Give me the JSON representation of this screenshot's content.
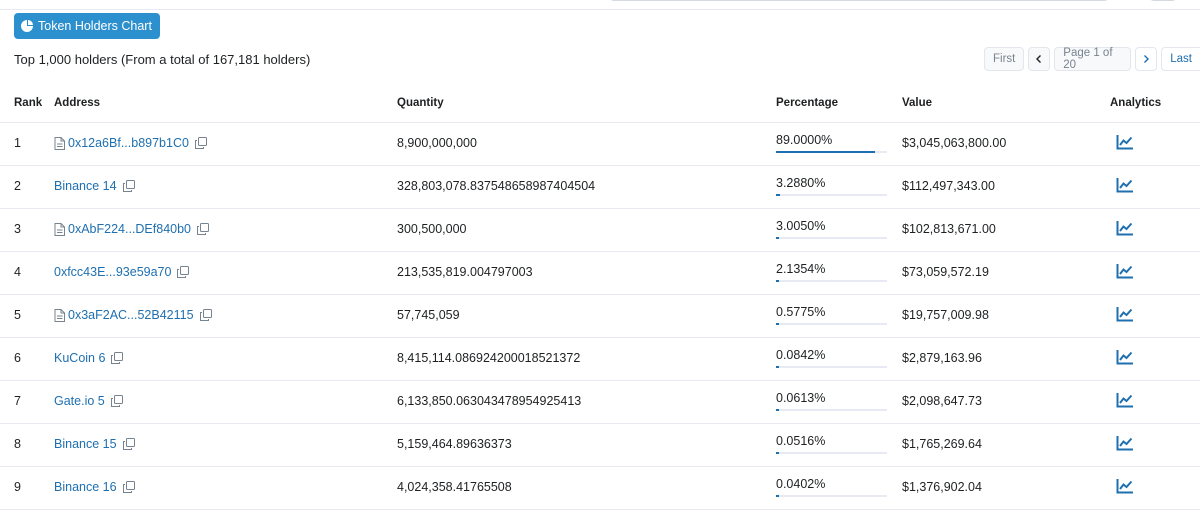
{
  "toolbar": {
    "chart_button_label": "Token Holders Chart",
    "chart_icon": "pie-chart-icon"
  },
  "summary": "Top 1,000 holders (From a total of 167,181 holders)",
  "pagination": {
    "first": "First",
    "prev": "<",
    "page": "Page 1 of 20",
    "next": ">",
    "last": "Last"
  },
  "table": {
    "headers": {
      "rank": "Rank",
      "address": "Address",
      "quantity": "Quantity",
      "percentage": "Percentage",
      "value": "Value",
      "analytics": "Analytics"
    },
    "rows": [
      {
        "rank": "1",
        "address": "0x12a6Bf...b897b1C0",
        "contract": true,
        "quantity": "8,900,000,000",
        "percentage": "89.0000%",
        "pct": 89.0,
        "value": "$3,045,063,800.00"
      },
      {
        "rank": "2",
        "address": "Binance 14",
        "contract": false,
        "quantity": "328,803,078.837548658987404504",
        "percentage": "3.2880%",
        "pct": 3.288,
        "value": "$112,497,343.00"
      },
      {
        "rank": "3",
        "address": "0xAbF224...DEf840b0",
        "contract": true,
        "quantity": "300,500,000",
        "percentage": "3.0050%",
        "pct": 3.005,
        "value": "$102,813,671.00"
      },
      {
        "rank": "4",
        "address": "0xfcc43E...93e59a70",
        "contract": false,
        "quantity": "213,535,819.004797003",
        "percentage": "2.1354%",
        "pct": 2.1354,
        "value": "$73,059,572.19"
      },
      {
        "rank": "5",
        "address": "0x3aF2AC...52B42115",
        "contract": true,
        "quantity": "57,745,059",
        "percentage": "0.5775%",
        "pct": 0.5775,
        "value": "$19,757,009.98"
      },
      {
        "rank": "6",
        "address": "KuCoin 6",
        "contract": false,
        "quantity": "8,415,114.086924200018521372",
        "percentage": "0.0842%",
        "pct": 0.0842,
        "value": "$2,879,163.96"
      },
      {
        "rank": "7",
        "address": "Gate.io 5",
        "contract": false,
        "quantity": "6,133,850.063043478954925413",
        "percentage": "0.0613%",
        "pct": 0.0613,
        "value": "$2,098,647.73"
      },
      {
        "rank": "8",
        "address": "Binance 15",
        "contract": false,
        "quantity": "5,159,464.89636373",
        "percentage": "0.0516%",
        "pct": 0.0516,
        "value": "$1,765,269.64"
      },
      {
        "rank": "9",
        "address": "Binance 16",
        "contract": false,
        "quantity": "4,024,358.41765508",
        "percentage": "0.0402%",
        "pct": 0.0402,
        "value": "$1,376,902.04"
      }
    ]
  },
  "colors": {
    "accent": "#1e6fb0",
    "button_bg": "#2c8fce",
    "border": "#e7eaf3"
  }
}
